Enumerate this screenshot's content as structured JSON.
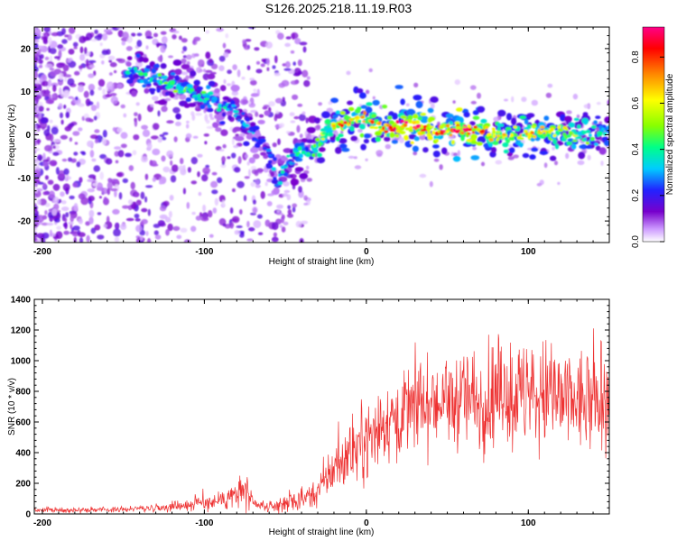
{
  "title": "S126.2025.218.11.19.R03",
  "chart_data": [
    {
      "type": "heatmap",
      "xlabel": "Height of straight line (km)",
      "ylabel": "Frequency (Hz)",
      "xlim": [
        -205,
        150
      ],
      "ylim": [
        -25,
        25
      ],
      "x_ticks": [
        -200,
        -100,
        0,
        100
      ],
      "y_ticks": [
        -20,
        -10,
        0,
        10,
        20
      ],
      "colorbar": {
        "label": "Normalized spectral amplitude",
        "range": [
          0,
          0.93
        ],
        "ticks": [
          "0.0",
          "0.2",
          "0.4",
          "0.6",
          "0.8"
        ],
        "colors": [
          "#ffffff",
          "#cc99ff",
          "#7700cc",
          "#2222ff",
          "#00ccff",
          "#00ff88",
          "#88ff00",
          "#ffff00",
          "#ff8800",
          "#ff0000",
          "#ff0088"
        ]
      },
      "ridge": {
        "x": [
          -145,
          -130,
          -115,
          -100,
          -90,
          -80,
          -70,
          -62,
          -55,
          -48,
          -42,
          -38,
          -34,
          -30,
          -25,
          -20,
          -15,
          -10,
          -5,
          0,
          10,
          20,
          30,
          40,
          50,
          60,
          70,
          80,
          90,
          100,
          110,
          120,
          130,
          140,
          150
        ],
        "y": [
          15,
          13,
          11,
          9,
          7,
          5,
          1,
          -3,
          -11,
          -6,
          -4,
          -5,
          -4,
          -2,
          0,
          2,
          3,
          3,
          4,
          4,
          2,
          2,
          2,
          1,
          1,
          1,
          1,
          0,
          0,
          0,
          1,
          1,
          0,
          0,
          1
        ],
        "amplitude": [
          0.35,
          0.4,
          0.45,
          0.4,
          0.35,
          0.3,
          0.3,
          0.25,
          0.3,
          0.35,
          0.4,
          0.35,
          0.45,
          0.5,
          0.55,
          0.6,
          0.7,
          0.65,
          0.6,
          0.65,
          0.7,
          0.8,
          0.85,
          0.75,
          0.8,
          0.8,
          0.7,
          0.6,
          0.55,
          0.6,
          0.65,
          0.55,
          0.5,
          0.4,
          0.35
        ]
      }
    },
    {
      "type": "line",
      "xlabel": "Height of straight line (km)",
      "ylabel": "SNR (10 * v/v)",
      "xlim": [
        -205,
        150
      ],
      "ylim": [
        0,
        1400
      ],
      "x_ticks": [
        -200,
        -100,
        0,
        100
      ],
      "y_ticks": [
        0,
        200,
        400,
        600,
        800,
        1000,
        1200,
        1400
      ],
      "color": "#ee3333",
      "envelope": {
        "x": [
          -205,
          -180,
          -150,
          -130,
          -110,
          -90,
          -80,
          -75,
          -70,
          -60,
          -50,
          -40,
          -30,
          -20,
          -10,
          0,
          10,
          20,
          30,
          40,
          50,
          60,
          70,
          80,
          90,
          100,
          110,
          120,
          130,
          140,
          150
        ],
        "mean": [
          25,
          25,
          30,
          40,
          60,
          90,
          130,
          150,
          60,
          40,
          70,
          90,
          150,
          300,
          400,
          480,
          580,
          650,
          700,
          730,
          720,
          760,
          740,
          780,
          770,
          760,
          780,
          720,
          740,
          700,
          720
        ],
        "spread": [
          15,
          15,
          15,
          20,
          40,
          60,
          100,
          120,
          40,
          30,
          60,
          60,
          100,
          160,
          200,
          220,
          250,
          260,
          260,
          270,
          260,
          300,
          320,
          340,
          340,
          320,
          330,
          320,
          320,
          300,
          300
        ]
      }
    }
  ]
}
